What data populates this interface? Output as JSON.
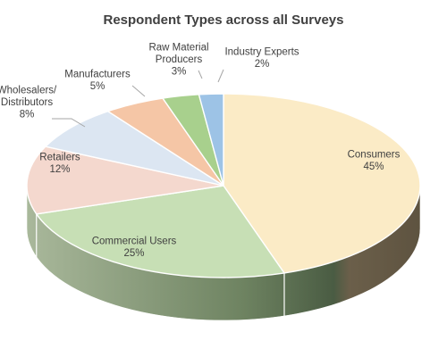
{
  "chart_data": {
    "type": "pie",
    "title": "Respondent Types across all Surveys",
    "unit": "%",
    "slices": [
      {
        "label": [
          "Consumers"
        ],
        "value": 45,
        "value_label": "45%",
        "color": "#fbebc6",
        "side": "#6d6049"
      },
      {
        "label": [
          "Commercial Users"
        ],
        "value": 25,
        "value_label": "25%",
        "color": "#c7dfb5",
        "side": "#56694d"
      },
      {
        "label": [
          "Retailers"
        ],
        "value": 12,
        "value_label": "12%",
        "color": "#f4d8ce",
        "side": "#9aab90"
      },
      {
        "label": [
          "Wholesalers/",
          "Distributors"
        ],
        "value": 8,
        "value_label": "8%",
        "color": "#dce6f2",
        "side": "#aab3bd"
      },
      {
        "label": [
          "Manufacturers"
        ],
        "value": 5,
        "value_label": "5%",
        "color": "#f5c6a6",
        "side": "#b08a70"
      },
      {
        "label": [
          "Raw Material",
          "Producers"
        ],
        "value": 3,
        "value_label": "3%",
        "color": "#a8d08d",
        "side": "#6f8a5d"
      },
      {
        "label": [
          "Industry Experts"
        ],
        "value": 2,
        "value_label": "2%",
        "color": "#9dc3e6",
        "side": "#6a8cab"
      }
    ]
  }
}
